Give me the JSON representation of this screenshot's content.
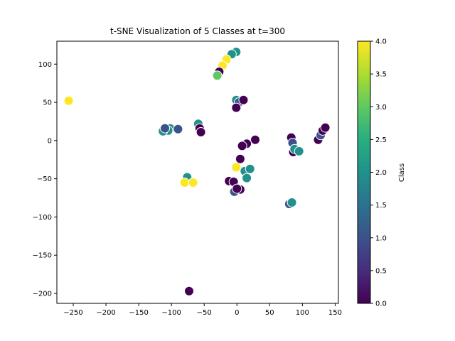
{
  "chart_data": {
    "type": "scatter",
    "title": "t-SNE Visualization of 5 Classes at t=300",
    "xlabel": "",
    "ylabel": "",
    "xlim": [
      -275,
      155
    ],
    "ylim": [
      -213,
      130
    ],
    "x_ticks": [
      -250,
      -200,
      -150,
      -100,
      -50,
      0,
      50,
      100,
      150
    ],
    "y_ticks": [
      -200,
      -150,
      -100,
      -50,
      0,
      50,
      100
    ],
    "x_tick_labels": [
      "−250",
      "−200",
      "−150",
      "−100",
      "−50",
      "0",
      "50",
      "100",
      "150"
    ],
    "y_tick_labels": [
      "−200",
      "−150",
      "−100",
      "−50",
      "0",
      "50",
      "100"
    ],
    "grid": false,
    "colormap": "viridis",
    "colorbar": {
      "label": "Class",
      "range": [
        0,
        4
      ],
      "ticks": [
        0.0,
        0.5,
        1.0,
        1.5,
        2.0,
        2.5,
        3.0,
        3.5,
        4.0
      ],
      "tick_labels": [
        "0.0",
        "0.5",
        "1.0",
        "1.5",
        "2.0",
        "2.5",
        "3.0",
        "3.5",
        "4.0"
      ]
    },
    "points": [
      {
        "x": -257,
        "y": 52,
        "c": 4
      },
      {
        "x": -73,
        "y": -197,
        "c": 0
      },
      {
        "x": -1,
        "y": 116,
        "c": 2
      },
      {
        "x": -8,
        "y": 113,
        "c": 2
      },
      {
        "x": -16,
        "y": 106,
        "c": 4
      },
      {
        "x": -22,
        "y": 98,
        "c": 4
      },
      {
        "x": -27,
        "y": 90,
        "c": 0
      },
      {
        "x": -30,
        "y": 85,
        "c": 3
      },
      {
        "x": -1,
        "y": 53,
        "c": 2
      },
      {
        "x": 3,
        "y": 50,
        "c": 1
      },
      {
        "x": 10,
        "y": 53,
        "c": 0
      },
      {
        "x": -1,
        "y": 43,
        "c": 0
      },
      {
        "x": -59,
        "y": 22,
        "c": 2
      },
      {
        "x": -57,
        "y": 16,
        "c": 0
      },
      {
        "x": -55,
        "y": 11,
        "c": 0
      },
      {
        "x": -102,
        "y": 16,
        "c": 2
      },
      {
        "x": -105,
        "y": 13,
        "c": 2
      },
      {
        "x": -113,
        "y": 12,
        "c": 2
      },
      {
        "x": -110,
        "y": 16,
        "c": 1
      },
      {
        "x": -90,
        "y": 15,
        "c": 1
      },
      {
        "x": 28,
        "y": 1,
        "c": 0
      },
      {
        "x": 15,
        "y": -4,
        "c": 0
      },
      {
        "x": 8,
        "y": -7,
        "c": 0
      },
      {
        "x": 5,
        "y": -24,
        "c": 0
      },
      {
        "x": -1,
        "y": -35,
        "c": 4
      },
      {
        "x": 12,
        "y": -40,
        "c": 2
      },
      {
        "x": 20,
        "y": -37,
        "c": 2
      },
      {
        "x": 15,
        "y": -49,
        "c": 2
      },
      {
        "x": -12,
        "y": -53,
        "c": 0
      },
      {
        "x": -5,
        "y": -54,
        "c": 0
      },
      {
        "x": 5,
        "y": -64,
        "c": 0
      },
      {
        "x": -4,
        "y": -67,
        "c": 1
      },
      {
        "x": 0,
        "y": -63,
        "c": 0
      },
      {
        "x": -76,
        "y": -48,
        "c": 2
      },
      {
        "x": -80,
        "y": -55,
        "c": 4
      },
      {
        "x": -67,
        "y": -55,
        "c": 4
      },
      {
        "x": 80,
        "y": -83,
        "c": 1
      },
      {
        "x": 84,
        "y": -81,
        "c": 2
      },
      {
        "x": 83,
        "y": 4,
        "c": 0
      },
      {
        "x": 85,
        "y": -3,
        "c": 1
      },
      {
        "x": 86,
        "y": -15,
        "c": 0
      },
      {
        "x": 88,
        "y": -11,
        "c": 2
      },
      {
        "x": 95,
        "y": -14,
        "c": 2
      },
      {
        "x": 124,
        "y": 1,
        "c": 0
      },
      {
        "x": 128,
        "y": 7,
        "c": 1
      },
      {
        "x": 131,
        "y": 13,
        "c": 0
      },
      {
        "x": 135,
        "y": 17,
        "c": 0
      }
    ]
  }
}
